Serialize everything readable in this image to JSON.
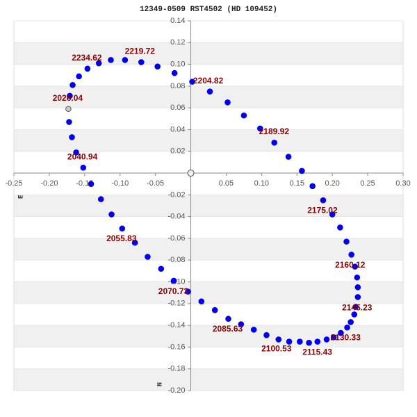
{
  "chart_data": {
    "type": "scatter",
    "title": "12349-0509 RST4502 (HD 109452)",
    "x_label": "E",
    "y_label": "N",
    "color": "#0000ee",
    "start_color": "#c8c8c8",
    "x": [
      -0.173,
      -0.171,
      -0.167,
      -0.158,
      -0.146,
      -0.13,
      -0.113,
      -0.093,
      -0.07,
      -0.047,
      -0.023,
      0.002,
      0.027,
      0.052,
      0.075,
      0.098,
      0.118,
      0.138,
      0.157,
      0.172,
      0.187,
      0.2,
      0.211,
      0.22,
      0.227,
      0.232,
      0.235,
      0.236,
      0.236,
      0.233,
      0.231,
      0.226,
      0.221,
      0.212,
      0.202,
      0.192,
      0.179,
      0.167,
      0.154,
      0.139,
      0.124,
      0.107,
      0.089,
      0.071,
      0.053,
      0.034,
      0.015,
      -0.004,
      -0.024,
      -0.042,
      -0.061,
      -0.079,
      -0.097,
      -0.112,
      -0.127,
      -0.141,
      -0.152,
      -0.162,
      -0.168,
      -0.172
    ],
    "y": [
      0.059,
      0.071,
      0.081,
      0.089,
      0.096,
      0.101,
      0.104,
      0.104,
      0.102,
      0.098,
      0.092,
      0.084,
      0.075,
      0.065,
      0.053,
      0.041,
      0.028,
      0.015,
      0.002,
      -0.012,
      -0.025,
      -0.038,
      -0.05,
      -0.063,
      -0.075,
      -0.086,
      -0.096,
      -0.105,
      -0.114,
      -0.123,
      -0.13,
      -0.137,
      -0.142,
      -0.147,
      -0.151,
      -0.153,
      -0.155,
      -0.156,
      -0.155,
      -0.155,
      -0.153,
      -0.149,
      -0.144,
      -0.139,
      -0.134,
      -0.126,
      -0.118,
      -0.109,
      -0.099,
      -0.088,
      -0.077,
      -0.064,
      -0.051,
      -0.038,
      -0.024,
      -0.01,
      0.005,
      0.019,
      0.033,
      0.047
    ],
    "point_labels": [
      "2026.04",
      null,
      null,
      null,
      "2234.62",
      null,
      null,
      null,
      "2219.72",
      null,
      null,
      "2204.82",
      null,
      null,
      null,
      "2189.92",
      null,
      null,
      null,
      null,
      "2175.02",
      null,
      null,
      null,
      null,
      "2160.12",
      null,
      null,
      null,
      "2145.23",
      null,
      null,
      null,
      null,
      "2130.33",
      null,
      null,
      "2115.43",
      null,
      null,
      "2100.53",
      null,
      null,
      null,
      "2085.63",
      null,
      null,
      "2070.73",
      null,
      null,
      null,
      null,
      "2055.83",
      null,
      null,
      null,
      null,
      "2040.94",
      null,
      null
    ],
    "xlim": [
      -0.25,
      0.3
    ],
    "ylim": [
      -0.2,
      0.14
    ],
    "xticks": [
      -0.25,
      {
        "value": -0.2,
        "label": "-0.20"
      },
      -0.15,
      {
        "value": -0.1,
        "label": "-0.10"
      },
      -0.05,
      0.05,
      {
        "value": 0.1,
        "label": "0.10"
      },
      0.15,
      {
        "value": 0.2,
        "label": "0.20"
      },
      0.25,
      {
        "value": 0.3,
        "label": "0.30"
      }
    ],
    "yticks": [
      0.14,
      0.12,
      {
        "value": 0.1,
        "label": "0.10"
      },
      0.08,
      0.06,
      0.04,
      0.02,
      -0.02,
      -0.04,
      -0.06,
      -0.08,
      {
        "value": -0.1,
        "label": "-0.10"
      },
      -0.12,
      -0.14,
      -0.16,
      -0.18,
      {
        "value": -0.2,
        "label": "-0.20"
      }
    ],
    "grid": true
  }
}
